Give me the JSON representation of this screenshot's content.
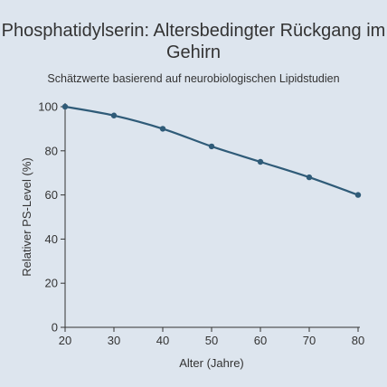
{
  "chart_data": {
    "type": "line",
    "title": "Phosphatidylserin: Altersbedingter Rückgang im Gehirn",
    "subtitle": "Schätzwerte basierend auf neurobiologischen Lipidstudien",
    "xlabel": "Alter (Jahre)",
    "ylabel": "Relativer PS-Level (%)",
    "x": [
      20,
      30,
      40,
      50,
      60,
      70,
      80
    ],
    "series": [
      {
        "values": [
          100,
          96,
          90,
          82,
          75,
          68,
          60
        ]
      }
    ],
    "xlim": [
      20,
      80
    ],
    "ylim": [
      0,
      100
    ],
    "xticks": [
      "20",
      "30",
      "40",
      "50",
      "60",
      "70",
      "80"
    ],
    "yticks": [
      "0",
      "20",
      "40",
      "60",
      "80",
      "100"
    ],
    "grid": false,
    "line_color": "#2f5b78",
    "background": "#dde5ee"
  }
}
